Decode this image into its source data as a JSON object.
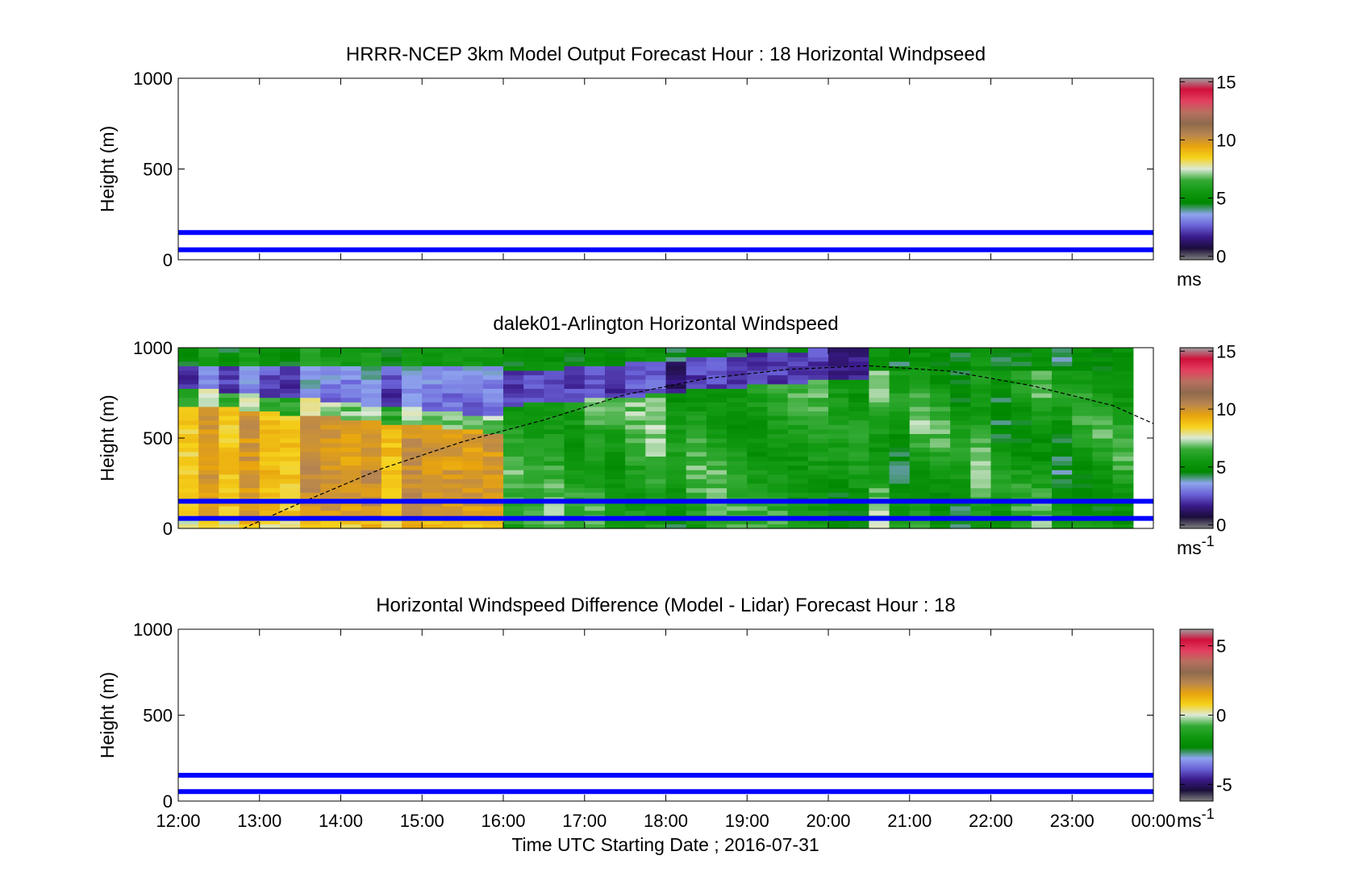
{
  "figure": {
    "xlabel": "Time UTC  Starting Date ; 2016-07-31",
    "xticks": [
      "12:00",
      "13:00",
      "14:00",
      "15:00",
      "16:00",
      "17:00",
      "18:00",
      "19:00",
      "20:00",
      "21:00",
      "22:00",
      "23:00",
      "00:00"
    ]
  },
  "colors": {
    "blue_band": "#0000ff",
    "colormap": [
      "#808080",
      "#1a0d3a",
      "#3a1a8a",
      "#6a62d8",
      "#8fa5ee",
      "#008800",
      "#119911",
      "#33aa33",
      "#dbe9d6",
      "#f6d21a",
      "#e8a40e",
      "#b88650",
      "#8f6a4c",
      "#b87060",
      "#e44060",
      "#d0103a",
      "#a0a0a0"
    ]
  },
  "chart_data": [
    {
      "id": "model",
      "type": "heatmap",
      "title": "HRRR-NCEP 3km Model Output   Forecast Hour : 18 Horizontal Windpseed",
      "ylabel": "Height (m)",
      "ylim": [
        0,
        1000
      ],
      "yticks": [
        "0",
        "500",
        "1000"
      ],
      "xlim_hours": [
        12,
        24
      ],
      "band_heights": [
        150,
        55
      ],
      "colorbar": {
        "ticks": [
          "0",
          "5",
          "10",
          "15"
        ],
        "tick_values": [
          0,
          5,
          10,
          15
        ],
        "range": [
          -0.3,
          15.3
        ],
        "unit": "ms",
        "unit_sup": ""
      },
      "has_field": false
    },
    {
      "id": "lidar",
      "type": "heatmap",
      "title": "dalek01-Arlington  Horizontal Windspeed",
      "ylabel": "Height (m)",
      "ylim": [
        0,
        1000
      ],
      "yticks": [
        "0",
        "500",
        "1000"
      ],
      "xlim_hours": [
        12,
        24
      ],
      "band_heights": [
        150,
        55
      ],
      "colorbar": {
        "ticks": [
          "0",
          "5",
          "10",
          "15"
        ],
        "tick_values": [
          0,
          5,
          10,
          15
        ],
        "range": [
          -0.3,
          15.3
        ],
        "unit": "ms",
        "unit_sup": "-1"
      },
      "has_field": true,
      "field": {
        "x_start_hour": 12.0,
        "x_end_hour": 23.85,
        "time_step_minutes": 15,
        "z_max_m": 1000,
        "z_step_m": 25,
        "boundary_layer_height": {
          "hours": [
            12.8,
            13.5,
            14.5,
            15.5,
            16.5,
            17.5,
            18.5,
            19.5,
            20.5,
            21.5,
            22.5,
            23.5,
            24.0
          ],
          "heights_m": [
            0,
            140,
            330,
            480,
            600,
            740,
            830,
            880,
            900,
            870,
            790,
            680,
            580
          ]
        }
      }
    },
    {
      "id": "diff",
      "type": "heatmap",
      "title": "Horizontal Windspeed Difference (Model - Lidar) Forecast Hour : 18",
      "ylabel": "Height (m)",
      "ylim": [
        0,
        1000
      ],
      "yticks": [
        "0",
        "500",
        "1000"
      ],
      "xlim_hours": [
        12,
        24
      ],
      "band_heights": [
        150,
        55
      ],
      "colorbar": {
        "ticks": [
          "-5",
          "0",
          "5"
        ],
        "tick_values": [
          -5,
          0,
          5
        ],
        "range": [
          -6.2,
          6.2
        ],
        "unit": "ms",
        "unit_sup": "-1"
      },
      "has_field": false,
      "show_xticks": true
    }
  ]
}
